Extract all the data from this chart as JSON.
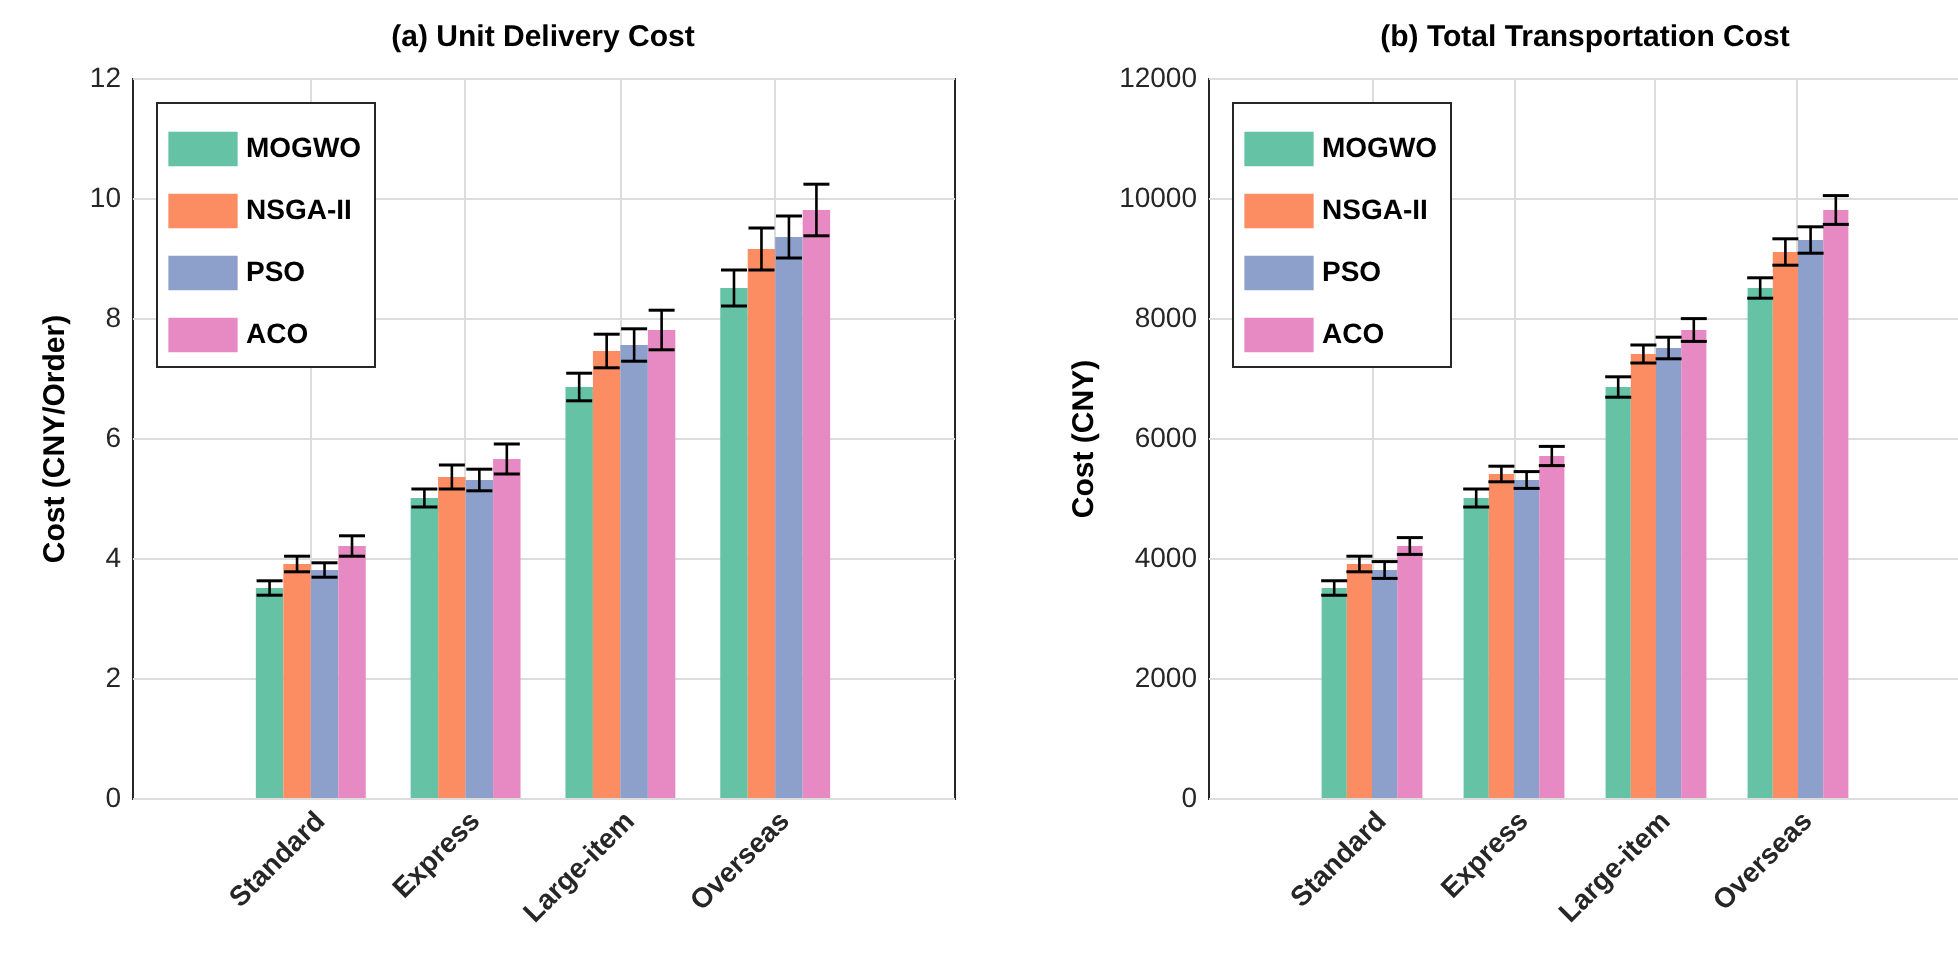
{
  "chart_data": [
    {
      "type": "bar",
      "title": "(a) Unit Delivery Cost",
      "ylabel": "Cost (CNY/Order)",
      "categories": [
        "Standard",
        "Express",
        "Large-item",
        "Overseas"
      ],
      "series": [
        {
          "name": "MOGWO",
          "color": "#66c2a5",
          "values": [
            3.5,
            5.0,
            6.85,
            8.5
          ],
          "errors": [
            0.12,
            0.15,
            0.23,
            0.3
          ]
        },
        {
          "name": "NSGA-II",
          "color": "#fc8d62",
          "values": [
            3.9,
            5.35,
            7.45,
            9.15
          ],
          "errors": [
            0.13,
            0.2,
            0.28,
            0.35
          ]
        },
        {
          "name": "PSO",
          "color": "#8da0cb",
          "values": [
            3.8,
            5.3,
            7.55,
            9.35
          ],
          "errors": [
            0.12,
            0.18,
            0.27,
            0.35
          ]
        },
        {
          "name": "ACO",
          "color": "#e78ac3",
          "values": [
            4.2,
            5.65,
            7.8,
            9.8
          ],
          "errors": [
            0.17,
            0.25,
            0.33,
            0.43
          ]
        }
      ],
      "ylim": [
        0,
        12
      ],
      "yticks": [
        0,
        2,
        4,
        6,
        8,
        10,
        12
      ],
      "grid": true,
      "legend": "top left"
    },
    {
      "type": "bar",
      "title": "(b) Total Transportation Cost",
      "ylabel": "Cost (CNY)",
      "categories": [
        "Standard",
        "Express",
        "Large-item",
        "Overseas"
      ],
      "series": [
        {
          "name": "MOGWO",
          "color": "#66c2a5",
          "values": [
            3500,
            5000,
            6850,
            8500
          ],
          "errors": [
            120,
            150,
            170,
            170
          ]
        },
        {
          "name": "NSGA-II",
          "color": "#fc8d62",
          "values": [
            3900,
            5400,
            7400,
            9100
          ],
          "errors": [
            130,
            130,
            150,
            220
          ]
        },
        {
          "name": "PSO",
          "color": "#8da0cb",
          "values": [
            3800,
            5300,
            7500,
            9300
          ],
          "errors": [
            140,
            140,
            180,
            220
          ]
        },
        {
          "name": "ACO",
          "color": "#e78ac3",
          "values": [
            4200,
            5700,
            7800,
            9800
          ],
          "errors": [
            140,
            160,
            190,
            240
          ]
        }
      ],
      "ylim": [
        0,
        12000
      ],
      "yticks": [
        0,
        2000,
        4000,
        6000,
        8000,
        10000,
        12000
      ],
      "grid": true,
      "legend": "top left"
    }
  ]
}
